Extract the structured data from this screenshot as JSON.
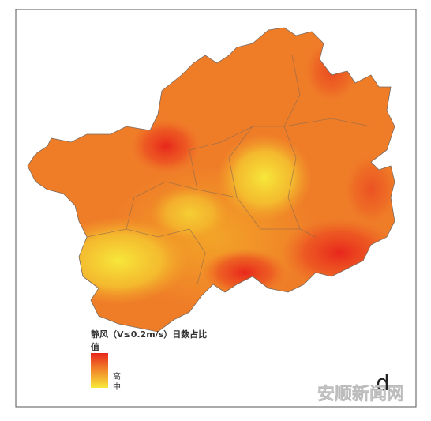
{
  "legend": {
    "title": "静风（V≤0.2m/s）日数占比",
    "subtitle": "值",
    "high": "高",
    "low": "中"
  },
  "panel_label": "d",
  "watermark": "安顺新闻网"
}
